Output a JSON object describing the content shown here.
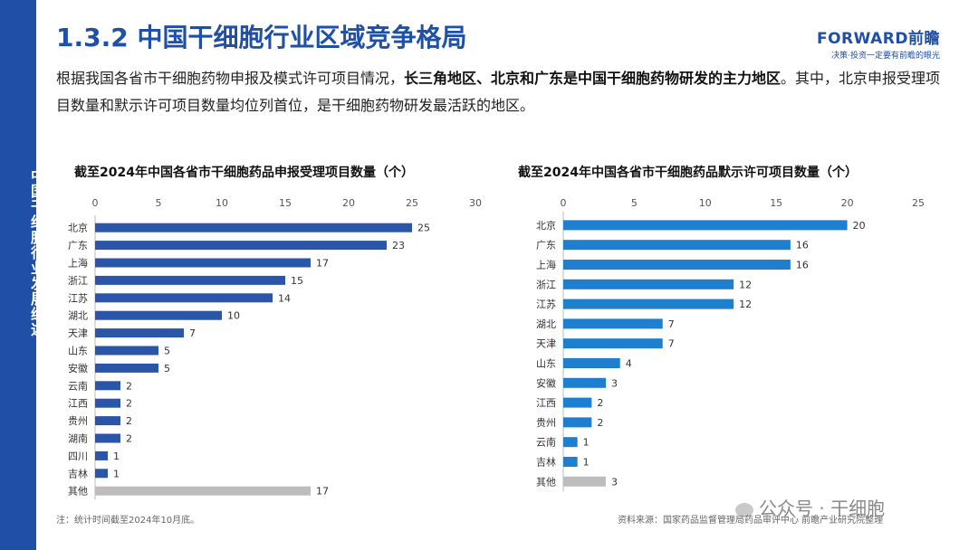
{
  "sidebar": {
    "label": "中国干细胞行业发展综述"
  },
  "header": {
    "title": "1.3.2 中国干细胞行业区域竞争格局",
    "logo_main": "FORWARD前瞻",
    "logo_sub": "决策·投资一定要有前瞻的眼光"
  },
  "intro": {
    "part1": "根据我国各省市干细胞药物申报及模式许可项目情况，",
    "bold": "长三角地区、北京和广东是中国干细胞药物研发的主力地区",
    "part2": "。其中，北京申报受理项目数量和默示许可项目数量均位列首位，是干细胞药物研发最活跃的地区。"
  },
  "chart_data": [
    {
      "type": "bar",
      "orientation": "horizontal",
      "title": "截至2024年中国各省市干细胞药品申报受理项目数量（个）",
      "categories": [
        "北京",
        "广东",
        "上海",
        "浙江",
        "江苏",
        "湖北",
        "天津",
        "山东",
        "安徽",
        "云南",
        "江西",
        "贵州",
        "湖南",
        "四川",
        "吉林",
        "其他"
      ],
      "values": [
        25,
        23,
        17,
        15,
        14,
        10,
        7,
        5,
        5,
        2,
        2,
        2,
        2,
        1,
        1,
        17
      ],
      "xlim": [
        0,
        30
      ],
      "ticks": [
        0,
        5,
        10,
        15,
        20,
        25,
        30
      ],
      "axis_position": "top",
      "colors": {
        "bar": "#2a55a8",
        "other": "#bdbdbd"
      }
    },
    {
      "type": "bar",
      "orientation": "horizontal",
      "title": "截至2024年中国各省市干细胞药品默示许可项目数量（个）",
      "categories": [
        "北京",
        "广东",
        "上海",
        "浙江",
        "江苏",
        "湖北",
        "天津",
        "山东",
        "安徽",
        "江西",
        "贵州",
        "云南",
        "吉林",
        "其他"
      ],
      "values": [
        20,
        16,
        16,
        12,
        12,
        7,
        7,
        4,
        3,
        2,
        2,
        1,
        1,
        3
      ],
      "xlim": [
        0,
        25
      ],
      "ticks": [
        0,
        5,
        10,
        15,
        20,
        25
      ],
      "axis_position": "top",
      "colors": {
        "bar": "#1e7fd0",
        "other": "#bdbdbd"
      }
    }
  ],
  "footer": {
    "note": "注：统计时间截至2024年10月底。",
    "source": "资料来源：国家药品监督管理局药品审评中心 前瞻产业研究院整理",
    "wechat": "公众号 · 干细胞"
  }
}
